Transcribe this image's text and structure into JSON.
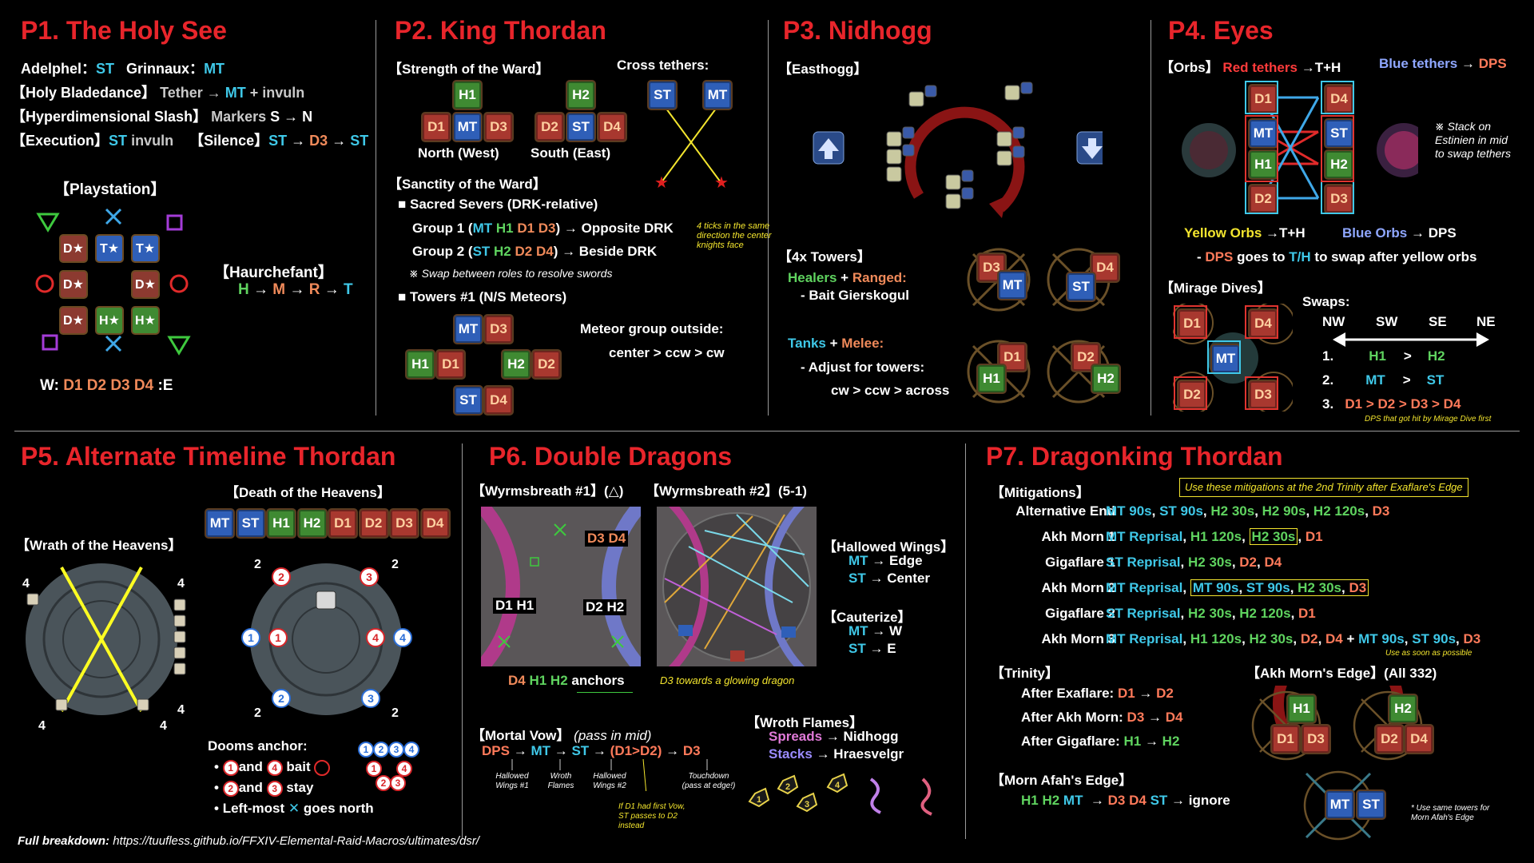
{
  "p1": {
    "title": "P1. The Holy See",
    "adelphel": "Adelphel：",
    "adelphel_role": "ST",
    "grinnaux": "Grinnaux：",
    "grinnaux_role": "MT",
    "holy_bladedance": "【Holy Bladedance】",
    "hb_tether": "Tether →",
    "hb_mt": "MT",
    "hb_rest": "+ invuln",
    "hyper": "【Hyperdimensional Slash】",
    "hyper_rest": "Markers",
    "hyper_s": "S → N",
    "execution": "【Execution】",
    "exec_st": "ST",
    "exec_rest": "invuln",
    "silence": "【Silence】",
    "sil_st": "ST",
    "sil_arrow": "→",
    "sil_d3": "D3",
    "sil_arrow2": "→",
    "sil_st2": "ST",
    "playstation": "【Playstation】",
    "haurchefant": "【Haurchefant】",
    "haur_h": "H",
    "haur_m": "M",
    "haur_r": "R",
    "haur_t": "T",
    "arrow": "→",
    "west_east": "W:",
    "west_east_dps": "D1 D2 D3 D4",
    "west_east_end": ":E",
    "stars": [
      [
        "D★",
        "T★",
        "T★"
      ],
      [
        "D★",
        "",
        "D★"
      ],
      [
        "D★",
        "H★",
        "H★"
      ]
    ]
  },
  "p2": {
    "title": "P2. King Thordan",
    "strength": "【Strength of the Ward】",
    "cross": "Cross tethers:",
    "north": "North (West)",
    "south": "South (East)",
    "sanctity": "【Sanctity of the Ward】",
    "sacred": "■ Sacred Severs (DRK-relative)",
    "group1": "Group 1 (",
    "g1_mt": "MT",
    "g1_h1": "H1",
    "g1_d": "D1 D3",
    "g1_end": ") → Opposite DRK",
    "group2": "Group 2 (",
    "g2_st": "ST",
    "g2_h2": "H2",
    "g2_d": "D2 D4",
    "g2_end": ") → Beside DRK",
    "swap_note": "※ Swap between roles to resolve swords",
    "ticks_note": "4 ticks in the same direction the center knights face",
    "towers": "■ Towers #1 (N/S Meteors)",
    "meteor": "Meteor group outside:",
    "meteor_order": "center > ccw > cw"
  },
  "p3": {
    "title": "P3. Nidhogg",
    "easthogg": "【Easthogg】",
    "towers": "【4x Towers】",
    "healers": "Healers",
    "plus": "+",
    "ranged": "Ranged:",
    "bait": "- Bait Gierskogul",
    "tanks": "Tanks",
    "melee": "Melee:",
    "adjust": "- Adjust for towers:",
    "order": "cw > ccw > across"
  },
  "p4": {
    "title": "P4. Eyes",
    "orbs": "【Orbs】",
    "red_tethers": "Red tethers",
    "red_target": "→T+H",
    "blue_tethers": "Blue tethers",
    "blue_arrow": "→",
    "blue_target": "DPS",
    "stack_note": "※ Stack on Estinien in mid to swap tethers",
    "yellow_orbs": "Yellow Orbs",
    "yellow_target": "→T+H",
    "blue_orbs": "Blue Orbs",
    "blue_orbs_target": "→ DPS",
    "dps_swap_1": "- ",
    "dps_swap_dps": "DPS",
    "dps_swap_2": "goes to",
    "dps_swap_th": "T/H",
    "dps_swap_3": "to swap after yellow orbs",
    "mirage": "【Mirage Dives】",
    "swaps": "Swaps:",
    "compass": [
      "NW",
      "SW",
      "SE",
      "NE"
    ],
    "rows": [
      {
        "n": "1.",
        "a": "H1",
        "op": ">",
        "b": "H2"
      },
      {
        "n": "2.",
        "a": "MT",
        "op": ">",
        "b": "ST"
      },
      {
        "n": "3.",
        "a": "D1 > D2 > D3 > D4",
        "op": "",
        "b": ""
      }
    ],
    "dive_note": "DPS that got hit by Mirage Dive first"
  },
  "p5": {
    "title": "P5. Alternate Timeline Thordan",
    "death": "【Death of the Heavens】",
    "roles": [
      "MT",
      "ST",
      "H1",
      "H2",
      "D1",
      "D2",
      "D3",
      "D4"
    ],
    "wrath": "【Wrath of the Heavens】",
    "dooms": "Dooms anchor:",
    "d1": "and",
    "d1b": "bait",
    "d2": "and",
    "d2b": "stay",
    "d3": "Left-most",
    "d3b": "goes north",
    "four": "4",
    "two": "2"
  },
  "p6": {
    "title": "P6. Double Dragons",
    "wyrm1": "【Wyrmsbreath #1】(△)",
    "wyrm2": "【Wyrmsbreath #2】(5-1)",
    "d3d4": "D3 D4",
    "d1h1": "D1 H1",
    "d2h2": "D2 H2",
    "anchors_d4": "D4",
    "anchors_h": "H1 H2",
    "anchors": "anchors",
    "d3_note": "D3 towards a glowing dragon",
    "hallowed": "【Hallowed Wings】",
    "hw_mt": "MT",
    "hw_mt_t": "→ Edge",
    "hw_st": "ST",
    "hw_st_t": "→ Center",
    "cauterize": "【Cauterize】",
    "ca_mt": "MT",
    "ca_mt_t": "→ W",
    "ca_st": "ST",
    "ca_st_t": "→ E",
    "mortal": "【Mortal Vow】",
    "mortal_note": "(pass in mid)",
    "mv_dps": "DPS",
    "mv_mt": "MT",
    "mv_st": "ST",
    "mv_d1d2": "(D1>D2)",
    "mv_d3": "D3",
    "mv_arrow": "→",
    "mv_labels": [
      "Hallowed Wings #1",
      "Wroth Flames",
      "Hallowed Wings #2",
      "Touchdown (pass at edge!)"
    ],
    "mv_d1_note": "If D1 had first Vow, ST passes to D2 instead",
    "wroth": "【Wroth Flames】",
    "spreads": "Spreads",
    "spreads_t": "→ Nidhogg",
    "stacks": "Stacks",
    "stacks_t": "→ Hraesvelgr"
  },
  "p7": {
    "title": "P7. Dragonking Thordan",
    "mitigations": "【Mitigations】",
    "use_note": "Use these mitigations at the 2nd Trinity after Exaflare's Edge",
    "rows": [
      {
        "label": "Alternative End",
        "value": "MT 90s, ST 90s, H2 30s, H2 90s, H2 120s, D3"
      },
      {
        "label": "Akh Morn 1",
        "value": "MT Reprisal, H1 120s, H2 30s, D1"
      },
      {
        "label": "Gigaflare 1",
        "value": "ST Reprisal, H2 30s, D2, D4"
      },
      {
        "label": "Akh Morn 2",
        "value": "MT Reprisal, MT 90s, ST 90s, H2 30s, D3"
      },
      {
        "label": "Gigaflare 2",
        "value": "ST Reprisal, H2 30s, H2 120s, D1"
      },
      {
        "label": "Akh Morn 3",
        "value": "MT Reprisal, H1 120s, H2 30s, D2, D4 + MT 90s, ST 90s, D3"
      }
    ],
    "asap": "Use as soon as possible",
    "trinity": "【Trinity】",
    "tri1": "After Exaflare:",
    "tri1_a": "D1",
    "tri1_b": "D2",
    "tri2": "After Akh Morn:",
    "tri2_a": "D3",
    "tri2_b": "D4",
    "tri3": "After Gigaflare:",
    "tri3_a": "H1",
    "tri3_b": "H2",
    "morn": "【Morn Afah's Edge】",
    "morn_heal": "H1 H2",
    "morn_mt": "MT",
    "morn_d": "D3 D4",
    "morn_st": "ST",
    "morn_ignore": "→ ignore",
    "akh_edge": "【Akh Morn's Edge】(All 332)",
    "towers_note": "* Use same towers for Morn Afah's Edge"
  },
  "footer": {
    "label": "Full breakdown:",
    "url": "https://tuufless.github.io/FFXIV-Elemental-Raid-Macros/ultimates/dsr/"
  }
}
